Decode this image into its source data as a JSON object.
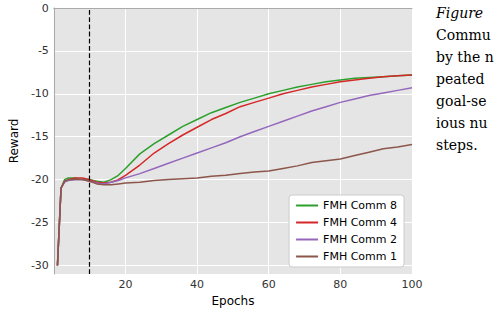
{
  "chart_data": {
    "type": "line",
    "x_label": "Epochs",
    "y_label": "Reward",
    "x": [
      1,
      2,
      3,
      4,
      6,
      8,
      10,
      12,
      14,
      16,
      18,
      20,
      24,
      28,
      32,
      36,
      40,
      44,
      48,
      52,
      56,
      60,
      64,
      68,
      72,
      76,
      80,
      84,
      88,
      92,
      96,
      100
    ],
    "series": [
      {
        "name": "FMH Comm 8",
        "color": "#2ca02c",
        "values": [
          -30,
          -21,
          -20,
          -19.8,
          -19.8,
          -20,
          -20,
          -20.2,
          -20.3,
          -20,
          -19.5,
          -18.7,
          -17,
          -15.8,
          -14.8,
          -13.8,
          -13,
          -12.2,
          -11.6,
          -11,
          -10.5,
          -10,
          -9.6,
          -9.2,
          -8.9,
          -8.6,
          -8.4,
          -8.2,
          -8.1,
          -8,
          -7.9,
          -7.8
        ]
      },
      {
        "name": "FMH Comm 4",
        "color": "#d62728",
        "values": [
          -30,
          -21,
          -20.2,
          -20,
          -19.8,
          -19.8,
          -20,
          -20.3,
          -20.4,
          -20.3,
          -20,
          -19.5,
          -18.3,
          -16.9,
          -15.8,
          -14.8,
          -13.9,
          -13,
          -12.3,
          -11.5,
          -11,
          -10.5,
          -10,
          -9.6,
          -9.2,
          -8.9,
          -8.6,
          -8.4,
          -8.2,
          -8,
          -7.9,
          -7.8
        ]
      },
      {
        "name": "FMH Comm 2",
        "color": "#9467bd",
        "values": [
          -30,
          -21,
          -20.3,
          -20.1,
          -20,
          -20,
          -20.2,
          -20.4,
          -20.5,
          -20.3,
          -20.1,
          -19.8,
          -19.3,
          -18.7,
          -18.1,
          -17.5,
          -16.9,
          -16.3,
          -15.7,
          -15,
          -14.4,
          -13.8,
          -13.2,
          -12.6,
          -12,
          -11.5,
          -11,
          -10.6,
          -10.2,
          -9.9,
          -9.6,
          -9.3
        ]
      },
      {
        "name": "FMH Comm 1",
        "color": "#8c564b",
        "values": [
          -30,
          -21,
          -20.2,
          -20,
          -20,
          -20,
          -20.2,
          -20.5,
          -20.6,
          -20.6,
          -20.5,
          -20.4,
          -20.3,
          -20.1,
          -20,
          -19.9,
          -19.8,
          -19.6,
          -19.5,
          -19.3,
          -19.1,
          -19,
          -18.7,
          -18.4,
          -18,
          -17.8,
          -17.6,
          -17.2,
          -16.8,
          -16.4,
          -16.2,
          -15.9
        ]
      }
    ],
    "reference_line": {
      "x": 10,
      "line_style": "dashed"
    },
    "xlim": [
      0,
      100
    ],
    "xticks": [
      20,
      40,
      60,
      80,
      100
    ],
    "ylim": [
      -31,
      0
    ],
    "yticks": [
      -30,
      -25,
      -20,
      -15,
      -10,
      -5,
      0
    ],
    "grid": true,
    "legend": "lower right",
    "annotations": [
      "Figure",
      "Commu",
      "by the n",
      "peated",
      "goal-se",
      "ious nu",
      "steps."
    ]
  }
}
